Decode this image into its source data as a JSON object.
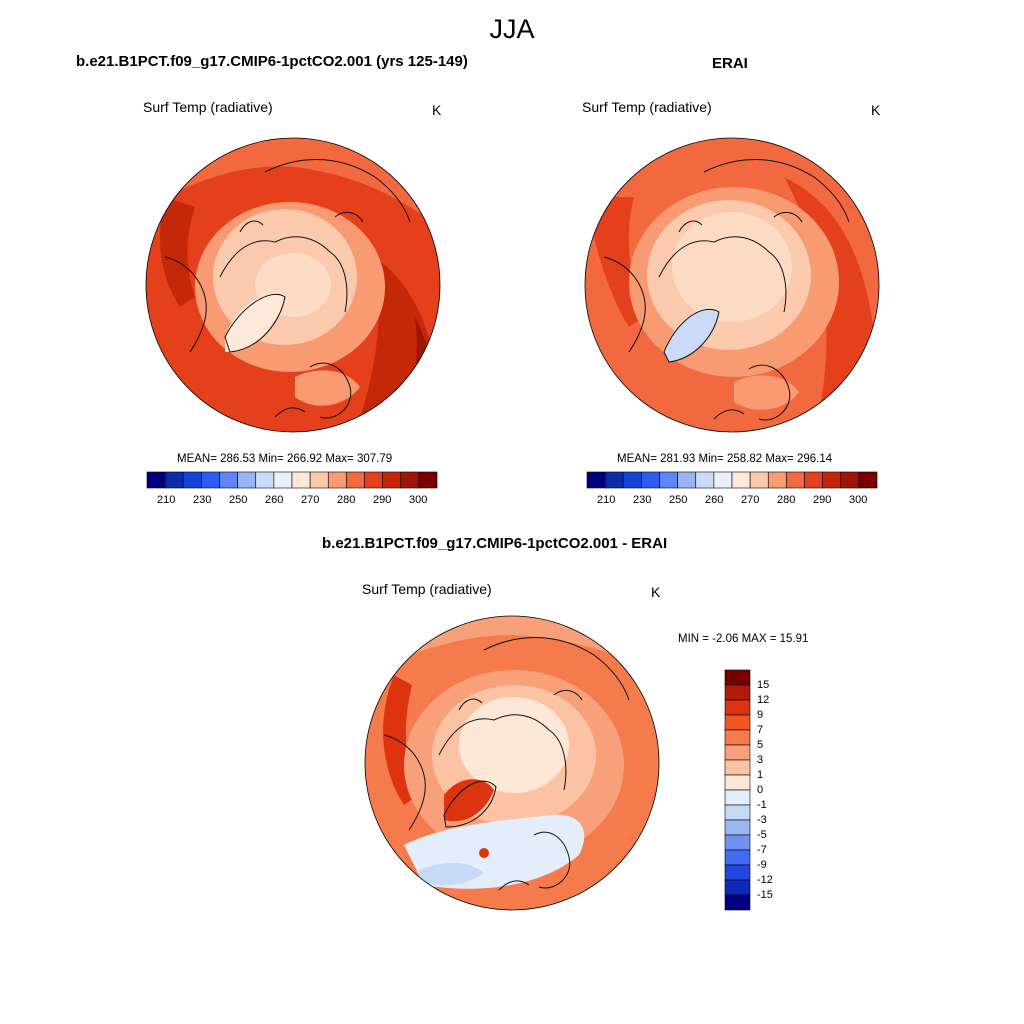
{
  "page_title": "JJA",
  "panels": [
    {
      "title": "b.e21.B1PCT.f09_g17.CMIP6-1pctCO2.001 (yrs 125-149)",
      "variable_label": "Surf Temp (radiative)",
      "units": "K",
      "stats": {
        "mean": "286.53",
        "min": "266.92",
        "max": "307.79"
      },
      "stats_text": "MEAN= 286.53  Min= 266.92  Max= 307.79"
    },
    {
      "title": "ERAI",
      "variable_label": "Surf Temp (radiative)",
      "units": "K",
      "stats": {
        "mean": "281.93",
        "min": "258.82",
        "max": "296.14"
      },
      "stats_text": "MEAN= 281.93  Min= 258.82  Max= 296.14"
    },
    {
      "title": "b.e21.B1PCT.f09_g17.CMIP6-1pctCO2.001 - ERAI",
      "variable_label": "Surf Temp (radiative)",
      "units": "K",
      "stats": {
        "min": "-2.06",
        "max": "15.91"
      },
      "stats_text": "MIN =  -2.06 MAX =  15.91"
    }
  ],
  "abs_colorbar": {
    "tick_labels": [
      "210",
      "230",
      "250",
      "260",
      "270",
      "280",
      "290",
      "300"
    ],
    "colors": [
      "#00007f",
      "#0a2ca8",
      "#1643d8",
      "#2f5bf0",
      "#5f86f2",
      "#98b3f5",
      "#c9dbf6",
      "#e8f1fb",
      "#fde9da",
      "#fbc9ab",
      "#f89a72",
      "#f2683f",
      "#e5401c",
      "#c42808",
      "#9e1405",
      "#7a0000"
    ]
  },
  "diff_colorbar": {
    "tick_labels": [
      "15",
      "12",
      "9",
      "7",
      "5",
      "3",
      "1",
      "0",
      "-1",
      "-3",
      "-5",
      "-7",
      "-9",
      "-12",
      "-15"
    ],
    "colors": [
      "#7a0000",
      "#b01c06",
      "#dd3410",
      "#f25520",
      "#f57a4c",
      "#f8a07a",
      "#fbc3a3",
      "#fde7d7",
      "#e4eefa",
      "#c6d9f6",
      "#9bb8f3",
      "#6f92f1",
      "#426cef",
      "#1f46e0",
      "#0d29b8",
      "#00007f"
    ]
  },
  "maps": [
    {
      "name": "model-map",
      "dominant_color": "#e5401c",
      "fill_levels": [
        "#c42808",
        "#e5401c",
        "#f2683f",
        "#f89a72",
        "#fbc9ab",
        "#fde9da",
        "#9e1405"
      ]
    },
    {
      "name": "erai-map",
      "dominant_color": "#f2683f",
      "fill_levels": [
        "#e5401c",
        "#f2683f",
        "#f89a72",
        "#fbc9ab",
        "#fde9da",
        "#c9dbf6"
      ]
    },
    {
      "name": "diff-map",
      "dominant_color": "#f57a4c",
      "fill_levels": [
        "#f57a4c",
        "#f8a07a",
        "#fbc3a3",
        "#fde7d7",
        "#e4eefa",
        "#c6d9f6",
        "#dd3410"
      ]
    }
  ]
}
